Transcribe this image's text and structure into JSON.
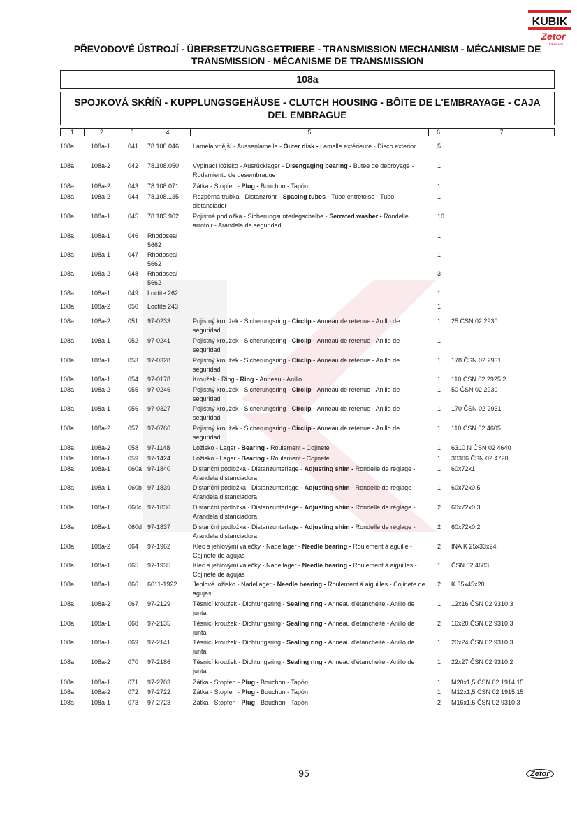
{
  "logo": {
    "brand": "KUBIK",
    "sub": "Zetor",
    "tag": "DEALER",
    "brand_color": "#d8262c"
  },
  "header": {
    "title": "PŘEVODOVÉ ÚSTROJÍ - ÜBERSETZUNGSGETRIEBE - TRANSMISSION MECHANISM - MÉCANISME DE TRANSMISSION - MÉCANISME DE TRANSMISSION",
    "section": "108a",
    "subtitle": "SPOJKOVÁ SKŘÍŇ - KUPPLUNGSGEHÄUSE - CLUTCH HOUSING - BÔITE DE L'EMBRAYAGE - CAJA DEL EMBRAGUE"
  },
  "columns": [
    "1",
    "2",
    "3",
    "4",
    "5",
    "6",
    "7"
  ],
  "rows": [
    [
      "108a",
      "108a-1",
      "041",
      "78.108.046",
      "Lamela vnější - Aussenlamelle - Outer disk - Lamelle extérieure - Disco exterior",
      "5",
      ""
    ],
    [
      "108a",
      "108a-2",
      "042",
      "78.108.050",
      "Vypínací ložisko - Ausrücklager - Disengaging bearing - Butée de débroyage - Rodamiento de desembrague",
      "1",
      ""
    ],
    [
      "108a",
      "108a-2",
      "043",
      "78.108.071",
      "Zátka - Stopfen - Plug - Bouchon - Tapón",
      "1",
      ""
    ],
    [
      "108a",
      "108a-2",
      "044",
      "78.108.135",
      "Rozpěrná trubka - Distanzrohr - Spacing tubes - Tube entretoise - Tubo distanciador",
      "1",
      ""
    ],
    [
      "108a",
      "108a-1",
      "045",
      "78.183.902",
      "Pojistná podložka - Sicherungsunterlegscheibe - Serrated washer - Rondelle arrotoir - Arandela de seguridad",
      "10",
      ""
    ],
    [
      "108a",
      "108a-1",
      "046",
      "Rhodoseal 5662",
      "",
      "1",
      ""
    ],
    [
      "108a",
      "108a-1",
      "047",
      "Rhodoseal 5662",
      "",
      "1",
      ""
    ],
    [
      "108a",
      "108a-2",
      "048",
      "Rhodoseal 5662",
      "",
      "3",
      ""
    ],
    [
      "108a",
      "108a-1",
      "049",
      "Loctite 262",
      "",
      "1",
      ""
    ],
    [
      "108a",
      "108a-2",
      "050",
      "Loctite 243",
      "",
      "1",
      ""
    ],
    [
      "108a",
      "108a-2",
      "051",
      "97-0233",
      "Pojistný kroužek - Sicherungsring - Circlip - Anneau de retenue - Anillo de seguridad",
      "1",
      "25 ČSN 02 2930"
    ],
    [
      "108a",
      "108a-1",
      "052",
      "97-0241",
      "Pojistný kroužek - Sicherungsring - Circlip - Anneau de retenue - Anillo de seguridad",
      "1",
      ""
    ],
    [
      "108a",
      "108a-1",
      "053",
      "97-0328",
      "Pojistný kroužek - Sicherungsring - Circlip - Anneau de retenue - Anillo de seguridad",
      "1",
      "178 ČSN 02 2931"
    ],
    [
      "108a",
      "108a-1",
      "054",
      "97-0178",
      "Kroužek - Ring - Ring - Anneau - Anillo",
      "1",
      "110 ČSN 02 2925.2"
    ],
    [
      "108a",
      "108a-2",
      "055",
      "97-0246",
      "Pojistný kroužek - Sicherungsring - Circlip - Anneau de retenue - Anillo de seguridad",
      "1",
      "50 ČSN 02 2930"
    ],
    [
      "108a",
      "108a-1",
      "056",
      "97-0327",
      "Pojistný kroužek - Sicherungsring - Circlip - Anneau de retenue - Anillo de seguridad",
      "1",
      "170 ČSN 02 2931"
    ],
    [
      "108a",
      "108a-2",
      "057",
      "97-0766",
      "Pojistný kroužek - Sicherungsring - Circlip - Anneau de retenue - Anillo de seguridad",
      "1",
      "110 ČSN 02 4605"
    ],
    [
      "108a",
      "108a-2",
      "058",
      "97-1148",
      "Ložisko - Lager - Bearing - Roulement - Cojinete",
      "1",
      "6310 N ČSN 02 4640"
    ],
    [
      "108a",
      "108a-1",
      "059",
      "97-1424",
      "Ložisko - Lager - Bearing - Roulement - Cojinete",
      "1",
      "30306 ČSN 02 4720"
    ],
    [
      "108a",
      "108a-1",
      "060a",
      "97-1840",
      "Distanční podložka - Distanzunterlage - Adjusting shim - Rondelle de réglage - Arandela distanciadora",
      "1",
      "60x72x1"
    ],
    [
      "108a",
      "108a-1",
      "060b",
      "97-1839",
      "Distanční podložka - Distanzunterlage - Adjusting shim - Rondelle de réglage - Arandela distanciadora",
      "1",
      "60x72x0.5"
    ],
    [
      "108a",
      "108a-1",
      "060c",
      "97-1836",
      "Distanční podložka - Distanzunterlage - Adjusting shim - Rondelle de réglage - Arandela distanciadora",
      "2",
      "60x72x0.3"
    ],
    [
      "108a",
      "108a-1",
      "060d",
      "97-1837",
      "Distanční podložka - Distanzunterlage - Adjusting shim - Rondelle de réglage - Arandela distanciadora",
      "2",
      "60x72x0.2"
    ],
    [
      "108a",
      "108a-2",
      "064",
      "97-1962",
      "Klec s jehlovými válečky - Nadellager - Needle bearing - Roulement á aguille - Cojinete de agujas",
      "2",
      "INA K 25x33x24"
    ],
    [
      "108a",
      "108a-1",
      "065",
      "97-1935",
      "Klec s jehlovými válečky - Nadellager - Needle bearing - Roulement á aiguilles - Cojinete de agujas",
      "1",
      "ČSN 02 4683"
    ],
    [
      "108a",
      "108a-1",
      "066",
      "6011-1922",
      "Jehlové ložisko - Nadellager - Needle bearing - Roulement á aiguilles - Cojinete de agujas",
      "2",
      "K 35x45x20"
    ],
    [
      "108a",
      "108a-2",
      "067",
      "97-2129",
      "Těsnicí kroužek - Dichtungsring - Sealing ring - Anneau d'étanchéité - Anillo de junta",
      "1",
      "12x16 ČSN 02 9310.3"
    ],
    [
      "108a",
      "108a-1",
      "068",
      "97-2135",
      "Těsnicí kroužek - Dichtungsring - Sealing ring - Anneau d'étanchéité - Anillo de junta",
      "2",
      "16x20 ČSN 02 9310.3"
    ],
    [
      "108a",
      "108a-1",
      "069",
      "97-2141",
      "Těsnicí kroužek - Dichtungsring - Sealing ring - Anneau d'étanchéité - Anillo de junta",
      "1",
      "20x24 ČSN 02 9310.3"
    ],
    [
      "108a",
      "108a-2",
      "070",
      "97-2186",
      "Těsnicí kroužek - Dichtungsring - Sealing ring - Anneau d'étanchéité - Anillo de junta",
      "1",
      "22x27 ČSN 02 9310.2"
    ],
    [
      "108a",
      "108a-1",
      "071",
      "97-2703",
      "Zátka - Stopfen - Plug - Bouchon - Tapón",
      "1",
      "M20x1,5 ČSN 02 1914.15"
    ],
    [
      "108a",
      "108a-2",
      "072",
      "97-2722",
      "Zátka - Stopfen - Plug - Bouchon - Tapón",
      "1",
      "M12x1,5 ČSN 02 1915.15"
    ],
    [
      "108a",
      "108a-1",
      "073",
      "97-2723",
      "Zátka - Stopfen - Plug - Bouchon - Tapón",
      "2",
      "M16x1,5 ČSN 02 9310.3"
    ]
  ],
  "footer": {
    "page_number": "95",
    "logo": "Zetor"
  }
}
